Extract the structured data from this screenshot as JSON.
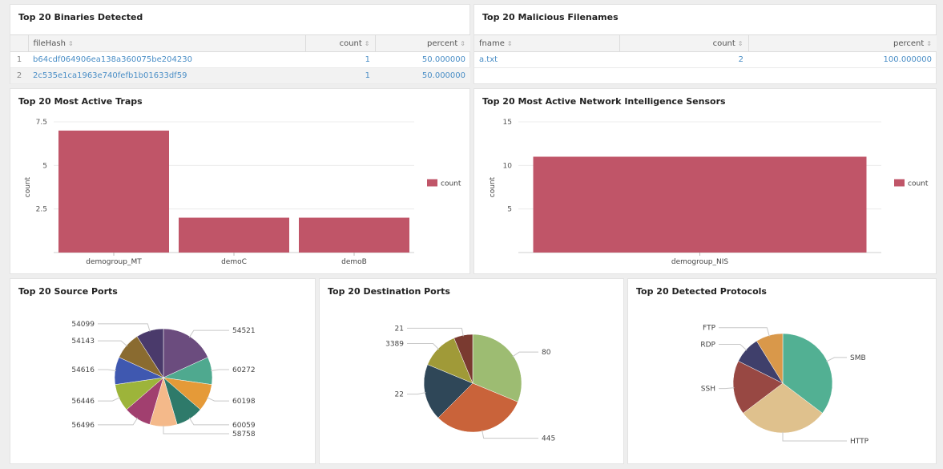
{
  "binaries": {
    "title": "Top 20 Binaries Detected",
    "columns": [
      "fileHash",
      "count",
      "percent"
    ],
    "sort_icon": "⇕",
    "rows": [
      {
        "index": "1",
        "fileHash": "b64cdf064906ea138a360075be204230",
        "count": "1",
        "percent": "50.000000"
      },
      {
        "index": "2",
        "fileHash": "2c535e1ca1963e740fefb1b01633df59",
        "count": "1",
        "percent": "50.000000"
      }
    ]
  },
  "filenames": {
    "title": "Top 20 Malicious Filenames",
    "columns": [
      "fname",
      "count",
      "percent"
    ],
    "rows": [
      {
        "fname": "a.txt",
        "count": "2",
        "percent": "100.000000"
      }
    ]
  },
  "traps": {
    "title": "Top 20 Most Active Traps",
    "chart_data": {
      "type": "bar",
      "categories": [
        "demogroup_MT",
        "demoC",
        "demoB"
      ],
      "series": [
        {
          "name": "count",
          "values": [
            7,
            2,
            2
          ]
        }
      ],
      "ylabel": "count",
      "ylim": [
        0,
        7.5
      ],
      "yticks": [
        "2.5",
        "5",
        "7.5"
      ],
      "legend": "right",
      "color": "#c05568"
    }
  },
  "sensors": {
    "title": "Top 20 Most Active Network Intelligence Sensors",
    "chart_data": {
      "type": "bar",
      "categories": [
        "demogroup_NIS"
      ],
      "series": [
        {
          "name": "count",
          "values": [
            11
          ]
        }
      ],
      "ylabel": "count",
      "ylim": [
        0,
        15
      ],
      "yticks": [
        "5",
        "10",
        "15"
      ],
      "legend": "right",
      "color": "#c05568"
    }
  },
  "source_ports": {
    "title": "Top 20 Source Ports",
    "chart_data": {
      "type": "pie",
      "slices": [
        {
          "label": "54521",
          "value": 2,
          "color": "#6b4c7e"
        },
        {
          "label": "60272",
          "value": 1,
          "color": "#4fa98f"
        },
        {
          "label": "60198",
          "value": 1,
          "color": "#e59a38"
        },
        {
          "label": "60059",
          "value": 1,
          "color": "#2e7a6a"
        },
        {
          "label": "58758",
          "value": 1,
          "color": "#f4b98a"
        },
        {
          "label": "56496",
          "value": 1,
          "color": "#a13f6f"
        },
        {
          "label": "56446",
          "value": 1,
          "color": "#9db43a"
        },
        {
          "label": "54616",
          "value": 1,
          "color": "#3f58b0"
        },
        {
          "label": "54143",
          "value": 1,
          "color": "#8a6b30"
        },
        {
          "label": "54099",
          "value": 1,
          "color": "#4a3a6b"
        }
      ]
    }
  },
  "dest_ports": {
    "title": "Top 20 Destination Ports",
    "chart_data": {
      "type": "pie",
      "slices": [
        {
          "label": "80",
          "value": 5,
          "color": "#9dbc72"
        },
        {
          "label": "445",
          "value": 5,
          "color": "#c9633a"
        },
        {
          "label": "22",
          "value": 3,
          "color": "#2f4758"
        },
        {
          "label": "3389",
          "value": 2,
          "color": "#a09a38"
        },
        {
          "label": "21",
          "value": 1,
          "color": "#7a3a30"
        }
      ]
    }
  },
  "protocols": {
    "title": "Top 20 Detected Protocols",
    "chart_data": {
      "type": "pie",
      "slices": [
        {
          "label": "SMB",
          "value": 6,
          "color": "#52b093"
        },
        {
          "label": "HTTP",
          "value": 5,
          "color": "#dfc18d"
        },
        {
          "label": "SSH",
          "value": 3,
          "color": "#984843"
        },
        {
          "label": "RDP",
          "value": 1.5,
          "color": "#3f3f6b"
        },
        {
          "label": "FTP",
          "value": 1.5,
          "color": "#d9984a"
        }
      ]
    }
  }
}
